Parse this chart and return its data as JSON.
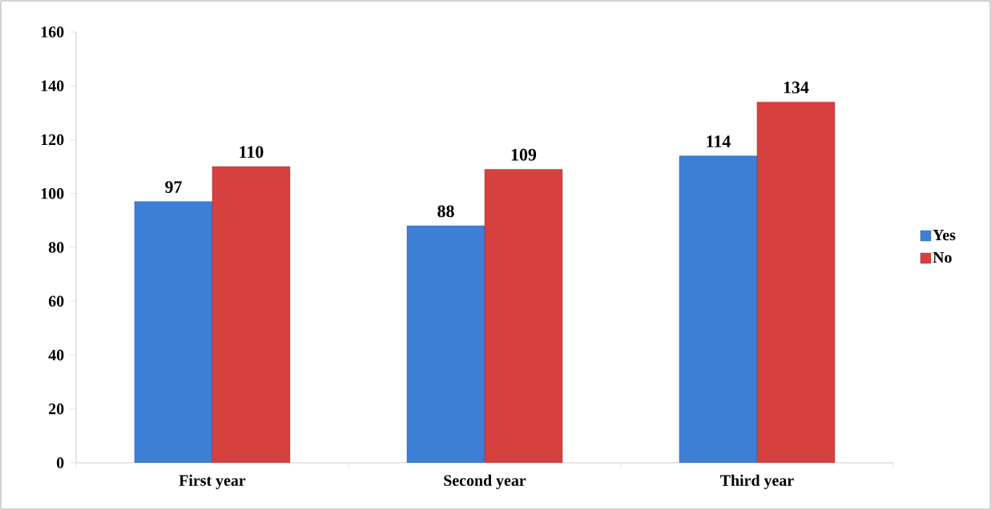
{
  "chart_data": {
    "type": "bar",
    "categories": [
      "First year",
      "Second year",
      "Third year"
    ],
    "series": [
      {
        "name": "Yes",
        "color": "#3d7fd6",
        "values": [
          97,
          88,
          114
        ]
      },
      {
        "name": "No",
        "color": "#d6403e",
        "values": [
          110,
          109,
          134
        ]
      }
    ],
    "ylim": [
      0,
      160
    ],
    "yticks": [
      0,
      20,
      40,
      60,
      80,
      100,
      120,
      140,
      160
    ],
    "data_labels": true,
    "legend": "right"
  }
}
